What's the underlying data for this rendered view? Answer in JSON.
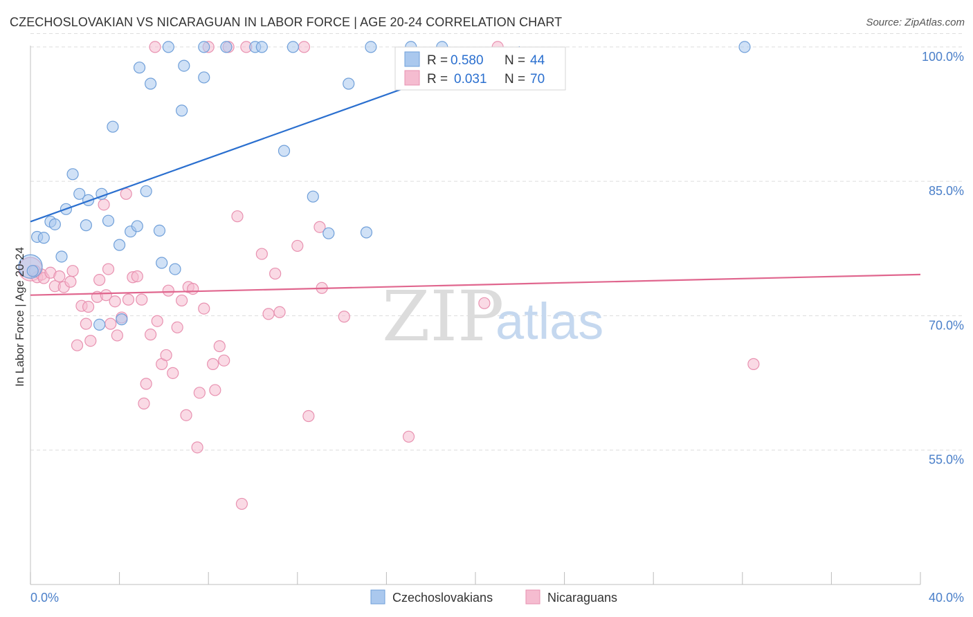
{
  "title": "CZECHOSLOVAKIAN VS NICARAGUAN IN LABOR FORCE | AGE 20-24 CORRELATION CHART",
  "source": "Source: ZipAtlas.com",
  "watermark": {
    "part1": "ZIP",
    "part2": "atlas"
  },
  "stats": [
    {
      "r_label": "R =",
      "r_value": "0.580",
      "n_label": "N =",
      "n_value": "44"
    },
    {
      "r_label": "R =",
      "r_value": "0.031",
      "n_label": "N =",
      "n_value": "70"
    }
  ],
  "legend": [
    "Czechoslovakians",
    "Nicaraguans"
  ],
  "colors": {
    "blue_fill": "#aac8ee",
    "blue_stroke": "#6f9fd9",
    "blue_line": "#2a6fcf",
    "pink_fill": "#f5bcd0",
    "pink_stroke": "#e891b0",
    "pink_line": "#e0668e",
    "grid": "#dddddd",
    "tick_text": "#4a7fc9"
  },
  "chart_data": {
    "type": "scatter",
    "title": "CZECHOSLOVAKIAN VS NICARAGUAN IN LABOR FORCE | AGE 20-24 CORRELATION CHART",
    "xlabel": "",
    "ylabel": "In Labor Force | Age 20-24",
    "xlim": [
      0,
      40
    ],
    "ylim": [
      40,
      102
    ],
    "x_tick_labels": [
      "0.0%",
      "40.0%"
    ],
    "y_ticks": [
      55,
      70,
      85,
      100
    ],
    "y_tick_labels": [
      "55.0%",
      "70.0%",
      "85.0%",
      "100.0%"
    ],
    "grid": true,
    "legend_position": "bottom-center",
    "series": [
      {
        "name": "Czechoslovakians",
        "color": "#aac8ee",
        "trend": {
          "x": [
            0,
            22
          ],
          "y": [
            80.5,
            100
          ]
        },
        "points": [
          [
            0.0,
            75.5
          ],
          [
            0.3,
            78.8
          ],
          [
            0.6,
            78.7
          ],
          [
            0.9,
            80.5
          ],
          [
            1.1,
            80.2
          ],
          [
            1.4,
            76.6
          ],
          [
            1.6,
            81.9
          ],
          [
            1.9,
            85.8
          ],
          [
            2.2,
            83.6
          ],
          [
            2.6,
            82.9
          ],
          [
            2.5,
            80.1
          ],
          [
            3.1,
            69.0
          ],
          [
            3.2,
            83.6
          ],
          [
            3.5,
            80.6
          ],
          [
            3.7,
            91.1
          ],
          [
            4.0,
            77.9
          ],
          [
            4.1,
            69.6
          ],
          [
            4.5,
            79.4
          ],
          [
            4.8,
            80.0
          ],
          [
            4.9,
            97.7
          ],
          [
            5.2,
            83.9
          ],
          [
            5.4,
            95.9
          ],
          [
            5.8,
            79.5
          ],
          [
            5.9,
            75.9
          ],
          [
            6.2,
            100.0
          ],
          [
            6.5,
            75.2
          ],
          [
            6.8,
            92.9
          ],
          [
            6.9,
            97.9
          ],
          [
            7.8,
            100.0
          ],
          [
            7.8,
            96.6
          ],
          [
            8.8,
            100.0
          ],
          [
            10.1,
            100.0
          ],
          [
            10.4,
            100.0
          ],
          [
            11.4,
            88.4
          ],
          [
            11.8,
            100.0
          ],
          [
            12.7,
            83.3
          ],
          [
            13.4,
            79.2
          ],
          [
            14.3,
            95.9
          ],
          [
            15.1,
            79.3
          ],
          [
            15.3,
            100.0
          ],
          [
            17.1,
            100.0
          ],
          [
            18.5,
            100.0
          ],
          [
            32.1,
            100.0
          ],
          [
            0.1,
            75.0
          ]
        ]
      },
      {
        "name": "Nicaraguans",
        "color": "#f5bcd0",
        "trend": {
          "x": [
            0,
            40
          ],
          "y": [
            72.3,
            74.6
          ]
        },
        "points": [
          [
            0.0,
            75.2
          ],
          [
            0.3,
            74.3
          ],
          [
            0.5,
            74.6
          ],
          [
            0.6,
            74.2
          ],
          [
            0.9,
            74.8
          ],
          [
            1.1,
            73.3
          ],
          [
            1.3,
            74.4
          ],
          [
            1.5,
            73.2
          ],
          [
            1.8,
            73.8
          ],
          [
            1.9,
            75.0
          ],
          [
            2.1,
            66.7
          ],
          [
            2.3,
            71.1
          ],
          [
            2.5,
            69.1
          ],
          [
            2.6,
            71.0
          ],
          [
            2.7,
            67.2
          ],
          [
            3.0,
            72.1
          ],
          [
            3.1,
            74.0
          ],
          [
            3.3,
            82.4
          ],
          [
            3.4,
            72.3
          ],
          [
            3.5,
            75.2
          ],
          [
            3.6,
            69.1
          ],
          [
            3.8,
            71.6
          ],
          [
            3.9,
            67.8
          ],
          [
            4.1,
            69.8
          ],
          [
            4.3,
            83.6
          ],
          [
            4.4,
            71.8
          ],
          [
            4.6,
            74.3
          ],
          [
            4.8,
            74.4
          ],
          [
            5.0,
            71.8
          ],
          [
            5.1,
            60.2
          ],
          [
            5.2,
            62.4
          ],
          [
            5.4,
            67.9
          ],
          [
            5.6,
            100.0
          ],
          [
            5.7,
            69.4
          ],
          [
            5.9,
            64.6
          ],
          [
            6.1,
            65.6
          ],
          [
            6.2,
            72.8
          ],
          [
            6.4,
            63.6
          ],
          [
            6.6,
            68.7
          ],
          [
            6.8,
            71.7
          ],
          [
            7.0,
            58.9
          ],
          [
            7.1,
            73.2
          ],
          [
            7.3,
            73.0
          ],
          [
            7.5,
            55.3
          ],
          [
            7.6,
            61.4
          ],
          [
            7.8,
            70.8
          ],
          [
            8.0,
            100.0
          ],
          [
            8.2,
            64.6
          ],
          [
            8.3,
            61.7
          ],
          [
            8.5,
            66.6
          ],
          [
            8.7,
            65.0
          ],
          [
            8.9,
            100.0
          ],
          [
            9.3,
            81.1
          ],
          [
            9.5,
            49.0
          ],
          [
            9.7,
            100.0
          ],
          [
            10.4,
            76.9
          ],
          [
            10.7,
            70.2
          ],
          [
            11.0,
            74.7
          ],
          [
            11.2,
            70.4
          ],
          [
            12.0,
            77.8
          ],
          [
            12.3,
            100.0
          ],
          [
            12.5,
            58.8
          ],
          [
            13.0,
            79.9
          ],
          [
            13.1,
            73.1
          ],
          [
            14.1,
            69.9
          ],
          [
            17.0,
            56.5
          ],
          [
            20.4,
            71.4
          ],
          [
            21.0,
            100.0
          ],
          [
            32.5,
            64.6
          ],
          [
            0.2,
            75.0
          ]
        ]
      }
    ]
  }
}
